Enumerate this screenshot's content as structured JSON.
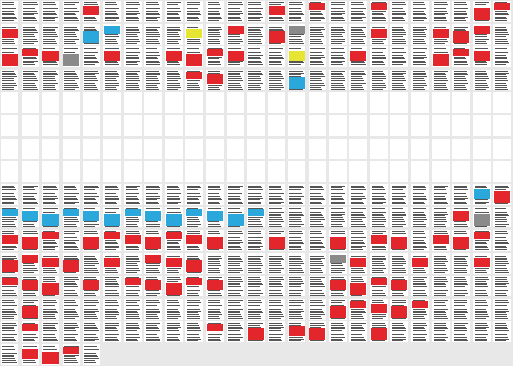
{
  "wall": {
    "columns": 25,
    "rows": 16,
    "empty_rows": [
      4,
      5,
      6,
      7
    ],
    "filled_after_last_row": 5,
    "colors": {
      "background": "#e8e8e8",
      "page": "#ffffff",
      "text": "#555555",
      "highlight_red": "#e3262b",
      "highlight_blue": "#2aa7db",
      "highlight_yellow": "#e6e632",
      "highlight_gray": "#8a8a8a"
    },
    "highlights": [
      {
        "row": 0,
        "col": 4,
        "color": "red"
      },
      {
        "row": 0,
        "col": 13,
        "color": "red"
      },
      {
        "row": 0,
        "col": 15,
        "color": "red"
      },
      {
        "row": 0,
        "col": 18,
        "color": "red"
      },
      {
        "row": 0,
        "col": 23,
        "color": "red"
      },
      {
        "row": 0,
        "col": 24,
        "color": "red"
      },
      {
        "row": 1,
        "col": 0,
        "color": "red"
      },
      {
        "row": 1,
        "col": 4,
        "color": "blue"
      },
      {
        "row": 1,
        "col": 5,
        "color": "blue"
      },
      {
        "row": 1,
        "col": 9,
        "color": "yellow"
      },
      {
        "row": 1,
        "col": 11,
        "color": "red"
      },
      {
        "row": 1,
        "col": 13,
        "color": "red"
      },
      {
        "row": 1,
        "col": 14,
        "color": "gray"
      },
      {
        "row": 1,
        "col": 18,
        "color": "red"
      },
      {
        "row": 1,
        "col": 21,
        "color": "red"
      },
      {
        "row": 1,
        "col": 22,
        "color": "red"
      },
      {
        "row": 1,
        "col": 23,
        "color": "red"
      },
      {
        "row": 2,
        "col": 0,
        "color": "red"
      },
      {
        "row": 2,
        "col": 1,
        "color": "red"
      },
      {
        "row": 2,
        "col": 2,
        "color": "red"
      },
      {
        "row": 2,
        "col": 3,
        "color": "gray"
      },
      {
        "row": 2,
        "col": 5,
        "color": "red"
      },
      {
        "row": 2,
        "col": 8,
        "color": "red"
      },
      {
        "row": 2,
        "col": 9,
        "color": "red"
      },
      {
        "row": 2,
        "col": 10,
        "color": "red"
      },
      {
        "row": 2,
        "col": 11,
        "color": "red"
      },
      {
        "row": 2,
        "col": 14,
        "color": "yellow"
      },
      {
        "row": 2,
        "col": 17,
        "color": "red"
      },
      {
        "row": 2,
        "col": 21,
        "color": "red"
      },
      {
        "row": 2,
        "col": 22,
        "color": "red"
      },
      {
        "row": 2,
        "col": 23,
        "color": "red"
      },
      {
        "row": 3,
        "col": 9,
        "color": "red"
      },
      {
        "row": 3,
        "col": 10,
        "color": "red"
      },
      {
        "row": 3,
        "col": 14,
        "color": "blue"
      },
      {
        "row": 8,
        "col": 23,
        "color": "blue"
      },
      {
        "row": 8,
        "col": 24,
        "color": "red"
      },
      {
        "row": 9,
        "col": 0,
        "color": "blue"
      },
      {
        "row": 9,
        "col": 1,
        "color": "blue"
      },
      {
        "row": 9,
        "col": 2,
        "color": "blue"
      },
      {
        "row": 9,
        "col": 3,
        "color": "blue"
      },
      {
        "row": 9,
        "col": 4,
        "color": "blue"
      },
      {
        "row": 9,
        "col": 5,
        "color": "blue"
      },
      {
        "row": 9,
        "col": 6,
        "color": "blue"
      },
      {
        "row": 9,
        "col": 7,
        "color": "blue"
      },
      {
        "row": 9,
        "col": 8,
        "color": "blue"
      },
      {
        "row": 9,
        "col": 9,
        "color": "blue"
      },
      {
        "row": 9,
        "col": 10,
        "color": "blue"
      },
      {
        "row": 9,
        "col": 11,
        "color": "blue"
      },
      {
        "row": 9,
        "col": 12,
        "color": "blue"
      },
      {
        "row": 9,
        "col": 22,
        "color": "red"
      },
      {
        "row": 9,
        "col": 23,
        "color": "gray"
      },
      {
        "row": 10,
        "col": 0,
        "color": "red"
      },
      {
        "row": 10,
        "col": 1,
        "color": "red"
      },
      {
        "row": 10,
        "col": 2,
        "color": "red"
      },
      {
        "row": 10,
        "col": 4,
        "color": "red"
      },
      {
        "row": 10,
        "col": 5,
        "color": "red"
      },
      {
        "row": 10,
        "col": 6,
        "color": "red"
      },
      {
        "row": 10,
        "col": 7,
        "color": "red"
      },
      {
        "row": 10,
        "col": 8,
        "color": "red"
      },
      {
        "row": 10,
        "col": 9,
        "color": "red"
      },
      {
        "row": 10,
        "col": 10,
        "color": "red"
      },
      {
        "row": 10,
        "col": 13,
        "color": "red"
      },
      {
        "row": 10,
        "col": 16,
        "color": "red"
      },
      {
        "row": 10,
        "col": 18,
        "color": "red"
      },
      {
        "row": 10,
        "col": 19,
        "color": "red"
      },
      {
        "row": 10,
        "col": 21,
        "color": "red"
      },
      {
        "row": 10,
        "col": 22,
        "color": "red"
      },
      {
        "row": 10,
        "col": 23,
        "color": "red"
      },
      {
        "row": 11,
        "col": 0,
        "color": "red"
      },
      {
        "row": 11,
        "col": 1,
        "color": "red"
      },
      {
        "row": 11,
        "col": 2,
        "color": "red"
      },
      {
        "row": 11,
        "col": 3,
        "color": "red"
      },
      {
        "row": 11,
        "col": 5,
        "color": "red"
      },
      {
        "row": 11,
        "col": 7,
        "color": "red"
      },
      {
        "row": 11,
        "col": 8,
        "color": "red"
      },
      {
        "row": 11,
        "col": 9,
        "color": "red"
      },
      {
        "row": 11,
        "col": 16,
        "color": "gray"
      },
      {
        "row": 11,
        "col": 17,
        "color": "red"
      },
      {
        "row": 11,
        "col": 20,
        "color": "red"
      },
      {
        "row": 11,
        "col": 23,
        "color": "red"
      },
      {
        "row": 12,
        "col": 0,
        "color": "red"
      },
      {
        "row": 12,
        "col": 1,
        "color": "red"
      },
      {
        "row": 12,
        "col": 2,
        "color": "red"
      },
      {
        "row": 12,
        "col": 4,
        "color": "red"
      },
      {
        "row": 12,
        "col": 6,
        "color": "red"
      },
      {
        "row": 12,
        "col": 7,
        "color": "red"
      },
      {
        "row": 12,
        "col": 8,
        "color": "red"
      },
      {
        "row": 12,
        "col": 9,
        "color": "red"
      },
      {
        "row": 12,
        "col": 10,
        "color": "red"
      },
      {
        "row": 12,
        "col": 16,
        "color": "red"
      },
      {
        "row": 12,
        "col": 17,
        "color": "red"
      },
      {
        "row": 12,
        "col": 18,
        "color": "red"
      },
      {
        "row": 12,
        "col": 19,
        "color": "red"
      },
      {
        "row": 13,
        "col": 1,
        "color": "red"
      },
      {
        "row": 13,
        "col": 16,
        "color": "red"
      },
      {
        "row": 13,
        "col": 17,
        "color": "red"
      },
      {
        "row": 13,
        "col": 18,
        "color": "red"
      },
      {
        "row": 13,
        "col": 19,
        "color": "red"
      },
      {
        "row": 13,
        "col": 20,
        "color": "red"
      },
      {
        "row": 14,
        "col": 1,
        "color": "red"
      },
      {
        "row": 14,
        "col": 10,
        "color": "red"
      },
      {
        "row": 14,
        "col": 12,
        "color": "red"
      },
      {
        "row": 14,
        "col": 14,
        "color": "red"
      },
      {
        "row": 14,
        "col": 15,
        "color": "red"
      },
      {
        "row": 14,
        "col": 18,
        "color": "red"
      },
      {
        "row": 15,
        "col": 1,
        "color": "red"
      },
      {
        "row": 15,
        "col": 2,
        "color": "red"
      },
      {
        "row": 15,
        "col": 3,
        "color": "red"
      }
    ]
  }
}
